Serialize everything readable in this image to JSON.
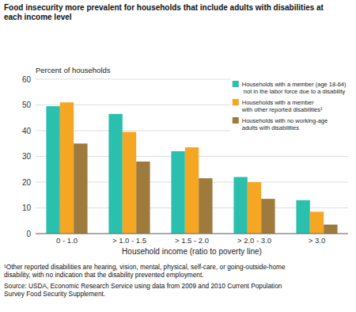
{
  "chart_data": {
    "type": "bar",
    "title": "Food insecurity more prevalent for households that include adults with disabilities at\neach income level",
    "ylabel": "Percent of households",
    "xlabel": "Household income (ratio to poverty line)",
    "categories": [
      "0 - 1.0",
      "> 1.0 - 1.5",
      "> 1.5 - 2.0",
      "> 2.0 - 3.0",
      "> 3.0"
    ],
    "series": [
      {
        "name": "Households with a member (age 18-64)\n not in the labor force due to a disability",
        "color": "#2bbfae",
        "values": [
          49.5,
          46.5,
          32.0,
          22.0,
          13.0
        ]
      },
      {
        "name": "Households with a member\nwith other reported disabilities¹",
        "color": "#f5a623",
        "values": [
          51.0,
          39.5,
          33.5,
          20.0,
          8.5
        ]
      },
      {
        "name": "Households with no working-age\nadults with disabilities",
        "color": "#9e7b3c",
        "values": [
          35.0,
          28.0,
          21.5,
          13.5,
          3.5
        ]
      }
    ],
    "ylim": [
      0,
      60
    ],
    "yticks": [
      0,
      10,
      20,
      30,
      40,
      50,
      60
    ],
    "grid": true,
    "legend": "upper right",
    "annotations": [
      "¹Other reported disabilities are hearing, vision, mental, physical, self-care, or going-outside-home\ndisability, with no indication that the disability prevented employment.",
      "Source: USDA, Economic Research Service using data from 2009 and 2010 Current Population\nSurvey Food Security Supplement."
    ]
  }
}
